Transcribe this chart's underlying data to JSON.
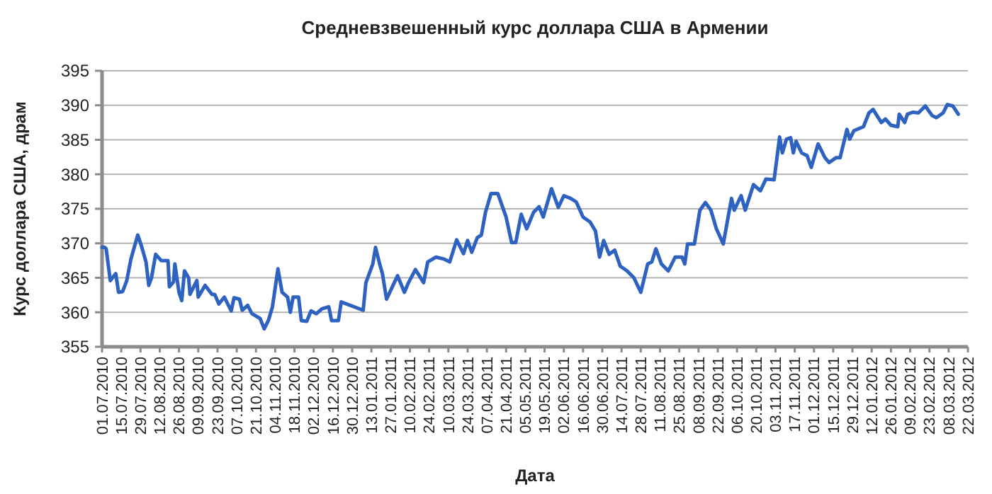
{
  "chart_data": {
    "type": "line",
    "title": "Средневзвешенный курс доллара США в Армении",
    "xlabel": "Дата",
    "ylabel": "Курс доллара США, драм",
    "grid": "y",
    "marker": "none",
    "line_style": "solid",
    "xlim": [
      "2010-07-01",
      "2012-03-22"
    ],
    "ylim": [
      355,
      395
    ],
    "yticks": [
      355,
      360,
      365,
      370,
      375,
      380,
      385,
      390,
      395
    ],
    "xticks": [
      {
        "value": "2010-07-01",
        "label": "01.07.2010"
      },
      {
        "value": "2010-07-15",
        "label": "15.07.2010"
      },
      {
        "value": "2010-07-29",
        "label": "29.07.2010"
      },
      {
        "value": "2010-08-12",
        "label": "12.08.2010"
      },
      {
        "value": "2010-08-26",
        "label": "26.08.2010"
      },
      {
        "value": "2010-09-09",
        "label": "09.09.2010"
      },
      {
        "value": "2010-09-23",
        "label": "23.09.2010"
      },
      {
        "value": "2010-10-07",
        "label": "07.10.2010"
      },
      {
        "value": "2010-10-21",
        "label": "21.10.2010"
      },
      {
        "value": "2010-11-04",
        "label": "04.11.2010"
      },
      {
        "value": "2010-11-18",
        "label": "18.11.2010"
      },
      {
        "value": "2010-12-02",
        "label": "02.12.2010"
      },
      {
        "value": "2010-12-16",
        "label": "16.12.2010"
      },
      {
        "value": "2010-12-30",
        "label": "30.12.2010"
      },
      {
        "value": "2011-01-13",
        "label": "13.01.2011"
      },
      {
        "value": "2011-01-27",
        "label": "27.01.2011"
      },
      {
        "value": "2011-02-10",
        "label": "10.02.2011"
      },
      {
        "value": "2011-02-24",
        "label": "24.02.2011"
      },
      {
        "value": "2011-03-10",
        "label": "10.03.2011"
      },
      {
        "value": "2011-03-24",
        "label": "24.03.2011"
      },
      {
        "value": "2011-04-07",
        "label": "07.04.2011"
      },
      {
        "value": "2011-04-21",
        "label": "21.04.2011"
      },
      {
        "value": "2011-05-05",
        "label": "05.05.2011"
      },
      {
        "value": "2011-05-19",
        "label": "19.05.2011"
      },
      {
        "value": "2011-06-02",
        "label": "02.06.2011"
      },
      {
        "value": "2011-06-16",
        "label": "16.06.2011"
      },
      {
        "value": "2011-06-30",
        "label": "30.06.2011"
      },
      {
        "value": "2011-07-14",
        "label": "14.07.2011"
      },
      {
        "value": "2011-07-28",
        "label": "28.07.2011"
      },
      {
        "value": "2011-08-11",
        "label": "11.08.2011"
      },
      {
        "value": "2011-08-25",
        "label": "25.08.2011"
      },
      {
        "value": "2011-09-08",
        "label": "08.09.2011"
      },
      {
        "value": "2011-09-22",
        "label": "22.09.2011"
      },
      {
        "value": "2011-10-06",
        "label": "06.10.2011"
      },
      {
        "value": "2011-10-20",
        "label": "20.10.2011"
      },
      {
        "value": "2011-11-03",
        "label": "03.11.2011"
      },
      {
        "value": "2011-11-17",
        "label": "17.11.2011"
      },
      {
        "value": "2011-12-01",
        "label": "01.12.2011"
      },
      {
        "value": "2011-12-15",
        "label": "15.12.2011"
      },
      {
        "value": "2011-12-29",
        "label": "29.12.2011"
      },
      {
        "value": "2012-01-12",
        "label": "12.01.2012"
      },
      {
        "value": "2012-01-26",
        "label": "26.01.2012"
      },
      {
        "value": "2012-02-09",
        "label": "09.02.2012"
      },
      {
        "value": "2012-02-23",
        "label": "23.02.2012"
      },
      {
        "value": "2012-03-08",
        "label": "08.03.2012"
      },
      {
        "value": "2012-03-22",
        "label": "22.03.2012"
      }
    ],
    "x": [
      "2010-07-01",
      "2010-07-03",
      "2010-07-04",
      "2010-07-07",
      "2010-07-11",
      "2010-07-13",
      "2010-07-16",
      "2010-07-19",
      "2010-07-22",
      "2010-07-27",
      "2010-07-30",
      "2010-08-02",
      "2010-08-04",
      "2010-08-06",
      "2010-08-09",
      "2010-08-13",
      "2010-08-18",
      "2010-08-19",
      "2010-08-22",
      "2010-08-23",
      "2010-08-26",
      "2010-08-28",
      "2010-08-30",
      "2010-09-02",
      "2010-09-03",
      "2010-09-08",
      "2010-09-09",
      "2010-09-14",
      "2010-09-19",
      "2010-09-21",
      "2010-09-24",
      "2010-09-28",
      "2010-10-03",
      "2010-10-05",
      "2010-10-09",
      "2010-10-11",
      "2010-10-15",
      "2010-10-18",
      "2010-10-24",
      "2010-10-27",
      "2010-10-30",
      "2010-11-02",
      "2010-11-06",
      "2010-11-09",
      "2010-11-13",
      "2010-11-15",
      "2010-11-17",
      "2010-11-21",
      "2010-11-23",
      "2010-11-27",
      "2010-11-30",
      "2010-12-04",
      "2010-12-08",
      "2010-12-13",
      "2010-12-15",
      "2010-12-20",
      "2010-12-22",
      "2011-01-07",
      "2011-01-09",
      "2011-01-14",
      "2011-01-16",
      "2011-01-19",
      "2011-01-21",
      "2011-01-24",
      "2011-01-28",
      "2011-02-01",
      "2011-02-06",
      "2011-02-09",
      "2011-02-14",
      "2011-02-20",
      "2011-02-23",
      "2011-03-01",
      "2011-03-07",
      "2011-03-11",
      "2011-03-16",
      "2011-03-21",
      "2011-03-24",
      "2011-03-27",
      "2011-03-31",
      "2011-04-03",
      "2011-04-06",
      "2011-04-10",
      "2011-04-15",
      "2011-04-21",
      "2011-04-25",
      "2011-04-28",
      "2011-05-02",
      "2011-05-06",
      "2011-05-11",
      "2011-05-15",
      "2011-05-18",
      "2011-05-24",
      "2011-05-29",
      "2011-06-02",
      "2011-06-07",
      "2011-06-11",
      "2011-06-16",
      "2011-06-21",
      "2011-06-25",
      "2011-06-28",
      "2011-07-01",
      "2011-07-05",
      "2011-07-09",
      "2011-07-13",
      "2011-07-18",
      "2011-07-23",
      "2011-07-28",
      "2011-08-02",
      "2011-08-05",
      "2011-08-08",
      "2011-08-12",
      "2011-08-17",
      "2011-08-22",
      "2011-08-25",
      "2011-08-27",
      "2011-08-29",
      "2011-08-31",
      "2011-09-05",
      "2011-09-09",
      "2011-09-13",
      "2011-09-17",
      "2011-09-21",
      "2011-09-26",
      "2011-10-02",
      "2011-10-04",
      "2011-10-09",
      "2011-10-12",
      "2011-10-18",
      "2011-10-23",
      "2011-10-27",
      "2011-11-02",
      "2011-11-06",
      "2011-11-08",
      "2011-11-11",
      "2011-11-14",
      "2011-11-16",
      "2011-11-18",
      "2011-11-22",
      "2011-11-26",
      "2011-11-29",
      "2011-12-04",
      "2011-12-09",
      "2011-12-12",
      "2011-12-17",
      "2011-12-20",
      "2011-12-25",
      "2011-12-27",
      "2011-12-30",
      "2012-01-06",
      "2012-01-10",
      "2012-01-13",
      "2012-01-19",
      "2012-01-22",
      "2012-01-26",
      "2012-01-31",
      "2012-02-01",
      "2012-02-05",
      "2012-02-07",
      "2012-02-11",
      "2012-02-15",
      "2012-02-20",
      "2012-02-25",
      "2012-02-28",
      "2012-03-04",
      "2012-03-07",
      "2012-03-11",
      "2012-03-15"
    ],
    "series": [
      {
        "color": "#2e62c0",
        "values": [
          369.4,
          369.4,
          369.2,
          364.6,
          365.6,
          362.9,
          363,
          364.6,
          367.7,
          371.2,
          369.4,
          367.3,
          363.9,
          365,
          368.4,
          367.5,
          367.5,
          363.7,
          364.4,
          367,
          362.9,
          361.7,
          366,
          365,
          362.6,
          364.6,
          362.2,
          363.9,
          362.6,
          362.6,
          361.2,
          362.2,
          360.2,
          362.1,
          361.9,
          360.3,
          361,
          359.8,
          359.1,
          357.6,
          358.8,
          360.8,
          366.3,
          362.9,
          362.2,
          360,
          362.2,
          362.2,
          358.8,
          358.7,
          360.2,
          359.8,
          360.5,
          360.8,
          358.8,
          358.8,
          361.5,
          360.3,
          364.3,
          367,
          369.4,
          367,
          365.6,
          361.9,
          363.6,
          365.3,
          362.9,
          364.3,
          366.2,
          364.3,
          367.3,
          368,
          367.7,
          367.3,
          370.5,
          368.5,
          370.4,
          368.7,
          370.8,
          371.2,
          374.5,
          377.2,
          377.2,
          373.8,
          370.1,
          370.1,
          374.2,
          372.1,
          374.5,
          375.3,
          373.8,
          377.9,
          375.2,
          376.9,
          376.5,
          376,
          373.8,
          373.1,
          371.8,
          368,
          370.4,
          368.4,
          369,
          366.7,
          366,
          365,
          362.9,
          367,
          367.3,
          369.2,
          367,
          366,
          368,
          368,
          368,
          367,
          369.9,
          369.9,
          374.8,
          375.9,
          374.8,
          372.1,
          369.9,
          376.5,
          374.8,
          376.9,
          374.8,
          378.5,
          377.6,
          379.3,
          379.2,
          385.4,
          383.1,
          385.1,
          385.3,
          383.1,
          384.8,
          383.1,
          382.7,
          381,
          384.4,
          382.4,
          381.7,
          382.4,
          382.4,
          386.5,
          385.1,
          386.3,
          386.9,
          388.9,
          389.4,
          387.5,
          388,
          387.1,
          386.9,
          388.7,
          387.5,
          388.7,
          389,
          388.9,
          389.9,
          388.5,
          388.2,
          388.9,
          390.1,
          389.9,
          388.7
        ]
      }
    ]
  }
}
